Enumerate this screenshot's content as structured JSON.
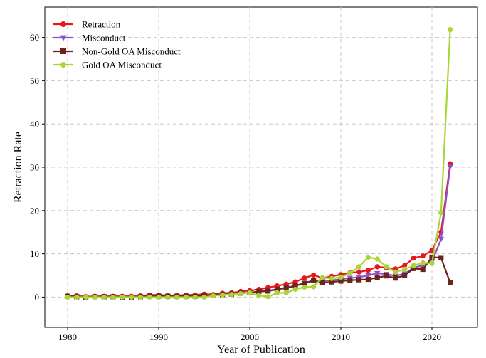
{
  "chart_data": {
    "type": "line",
    "xlabel": "Year of Publication",
    "ylabel": "Retraction Rate",
    "xlim": [
      1977.5,
      2025
    ],
    "ylim": [
      -7,
      67
    ],
    "xticks": [
      1980,
      1990,
      2000,
      2010,
      2020
    ],
    "yticks": [
      0,
      10,
      20,
      30,
      40,
      50,
      60
    ],
    "grid": true,
    "legend_position": "top-left",
    "x": [
      1980,
      1981,
      1982,
      1983,
      1984,
      1985,
      1986,
      1987,
      1988,
      1989,
      1990,
      1991,
      1992,
      1993,
      1994,
      1995,
      1996,
      1997,
      1998,
      1999,
      2000,
      2001,
      2002,
      2003,
      2004,
      2005,
      2006,
      2007,
      2008,
      2009,
      2010,
      2011,
      2012,
      2013,
      2014,
      2015,
      2016,
      2017,
      2018,
      2019,
      2020,
      2021,
      2022
    ],
    "series": [
      {
        "name": "Retraction",
        "color": "#e8171a",
        "marker": "circle",
        "values": [
          0.3,
          0.3,
          0.1,
          0.2,
          0.2,
          0.2,
          0.2,
          0.2,
          0.3,
          0.5,
          0.5,
          0.4,
          0.4,
          0.5,
          0.5,
          0.7,
          0.6,
          0.9,
          1.0,
          1.3,
          1.5,
          1.8,
          2.2,
          2.6,
          3.0,
          3.5,
          4.4,
          5.1,
          4.4,
          4.8,
          5.2,
          5.6,
          5.8,
          6.2,
          7.0,
          6.8,
          6.5,
          7.3,
          9.0,
          9.5,
          10.8,
          15.0,
          30.8
        ]
      },
      {
        "name": "Misconduct",
        "color": "#8e4ec6",
        "marker": "triangle-down",
        "values": [
          0.1,
          0.1,
          0.0,
          0.1,
          0.1,
          0.1,
          0.0,
          0.1,
          0.1,
          0.2,
          0.2,
          0.2,
          0.2,
          0.2,
          0.2,
          0.4,
          0.4,
          0.6,
          0.7,
          0.9,
          1.0,
          1.3,
          1.5,
          1.8,
          2.2,
          2.6,
          3.2,
          3.9,
          3.7,
          3.9,
          4.1,
          4.4,
          4.6,
          5.0,
          5.5,
          5.3,
          4.9,
          5.4,
          6.8,
          7.3,
          8.2,
          13.4,
          30.1
        ]
      },
      {
        "name": "Non-Gold OA Misconduct",
        "color": "#6b2519",
        "marker": "square",
        "values": [
          0.2,
          0.1,
          0.0,
          0.1,
          0.1,
          0.1,
          0.0,
          0.0,
          0.1,
          0.2,
          0.2,
          0.2,
          0.2,
          0.2,
          0.2,
          0.4,
          0.4,
          0.6,
          0.7,
          0.9,
          1.0,
          1.3,
          1.4,
          1.8,
          2.1,
          2.6,
          3.2,
          3.8,
          3.3,
          3.5,
          3.7,
          3.9,
          4.0,
          4.1,
          4.5,
          4.9,
          4.4,
          5.0,
          6.6,
          6.4,
          9.2,
          9.1,
          3.3
        ]
      },
      {
        "name": "Gold OA Misconduct",
        "color": "#a9d536",
        "marker": "circle",
        "values": [
          0.0,
          0.0,
          0.0,
          0.0,
          0.0,
          0.0,
          0.0,
          0.0,
          0.0,
          0.0,
          0.0,
          0.0,
          0.0,
          0.0,
          0.0,
          0.0,
          0.3,
          0.5,
          0.6,
          0.8,
          1.0,
          0.4,
          0.1,
          1.0,
          1.0,
          1.8,
          2.3,
          2.4,
          4.5,
          4.3,
          4.6,
          5.5,
          7.0,
          9.2,
          8.8,
          7.0,
          5.8,
          6.4,
          7.3,
          7.9,
          7.8,
          19.5,
          61.8
        ]
      }
    ]
  }
}
